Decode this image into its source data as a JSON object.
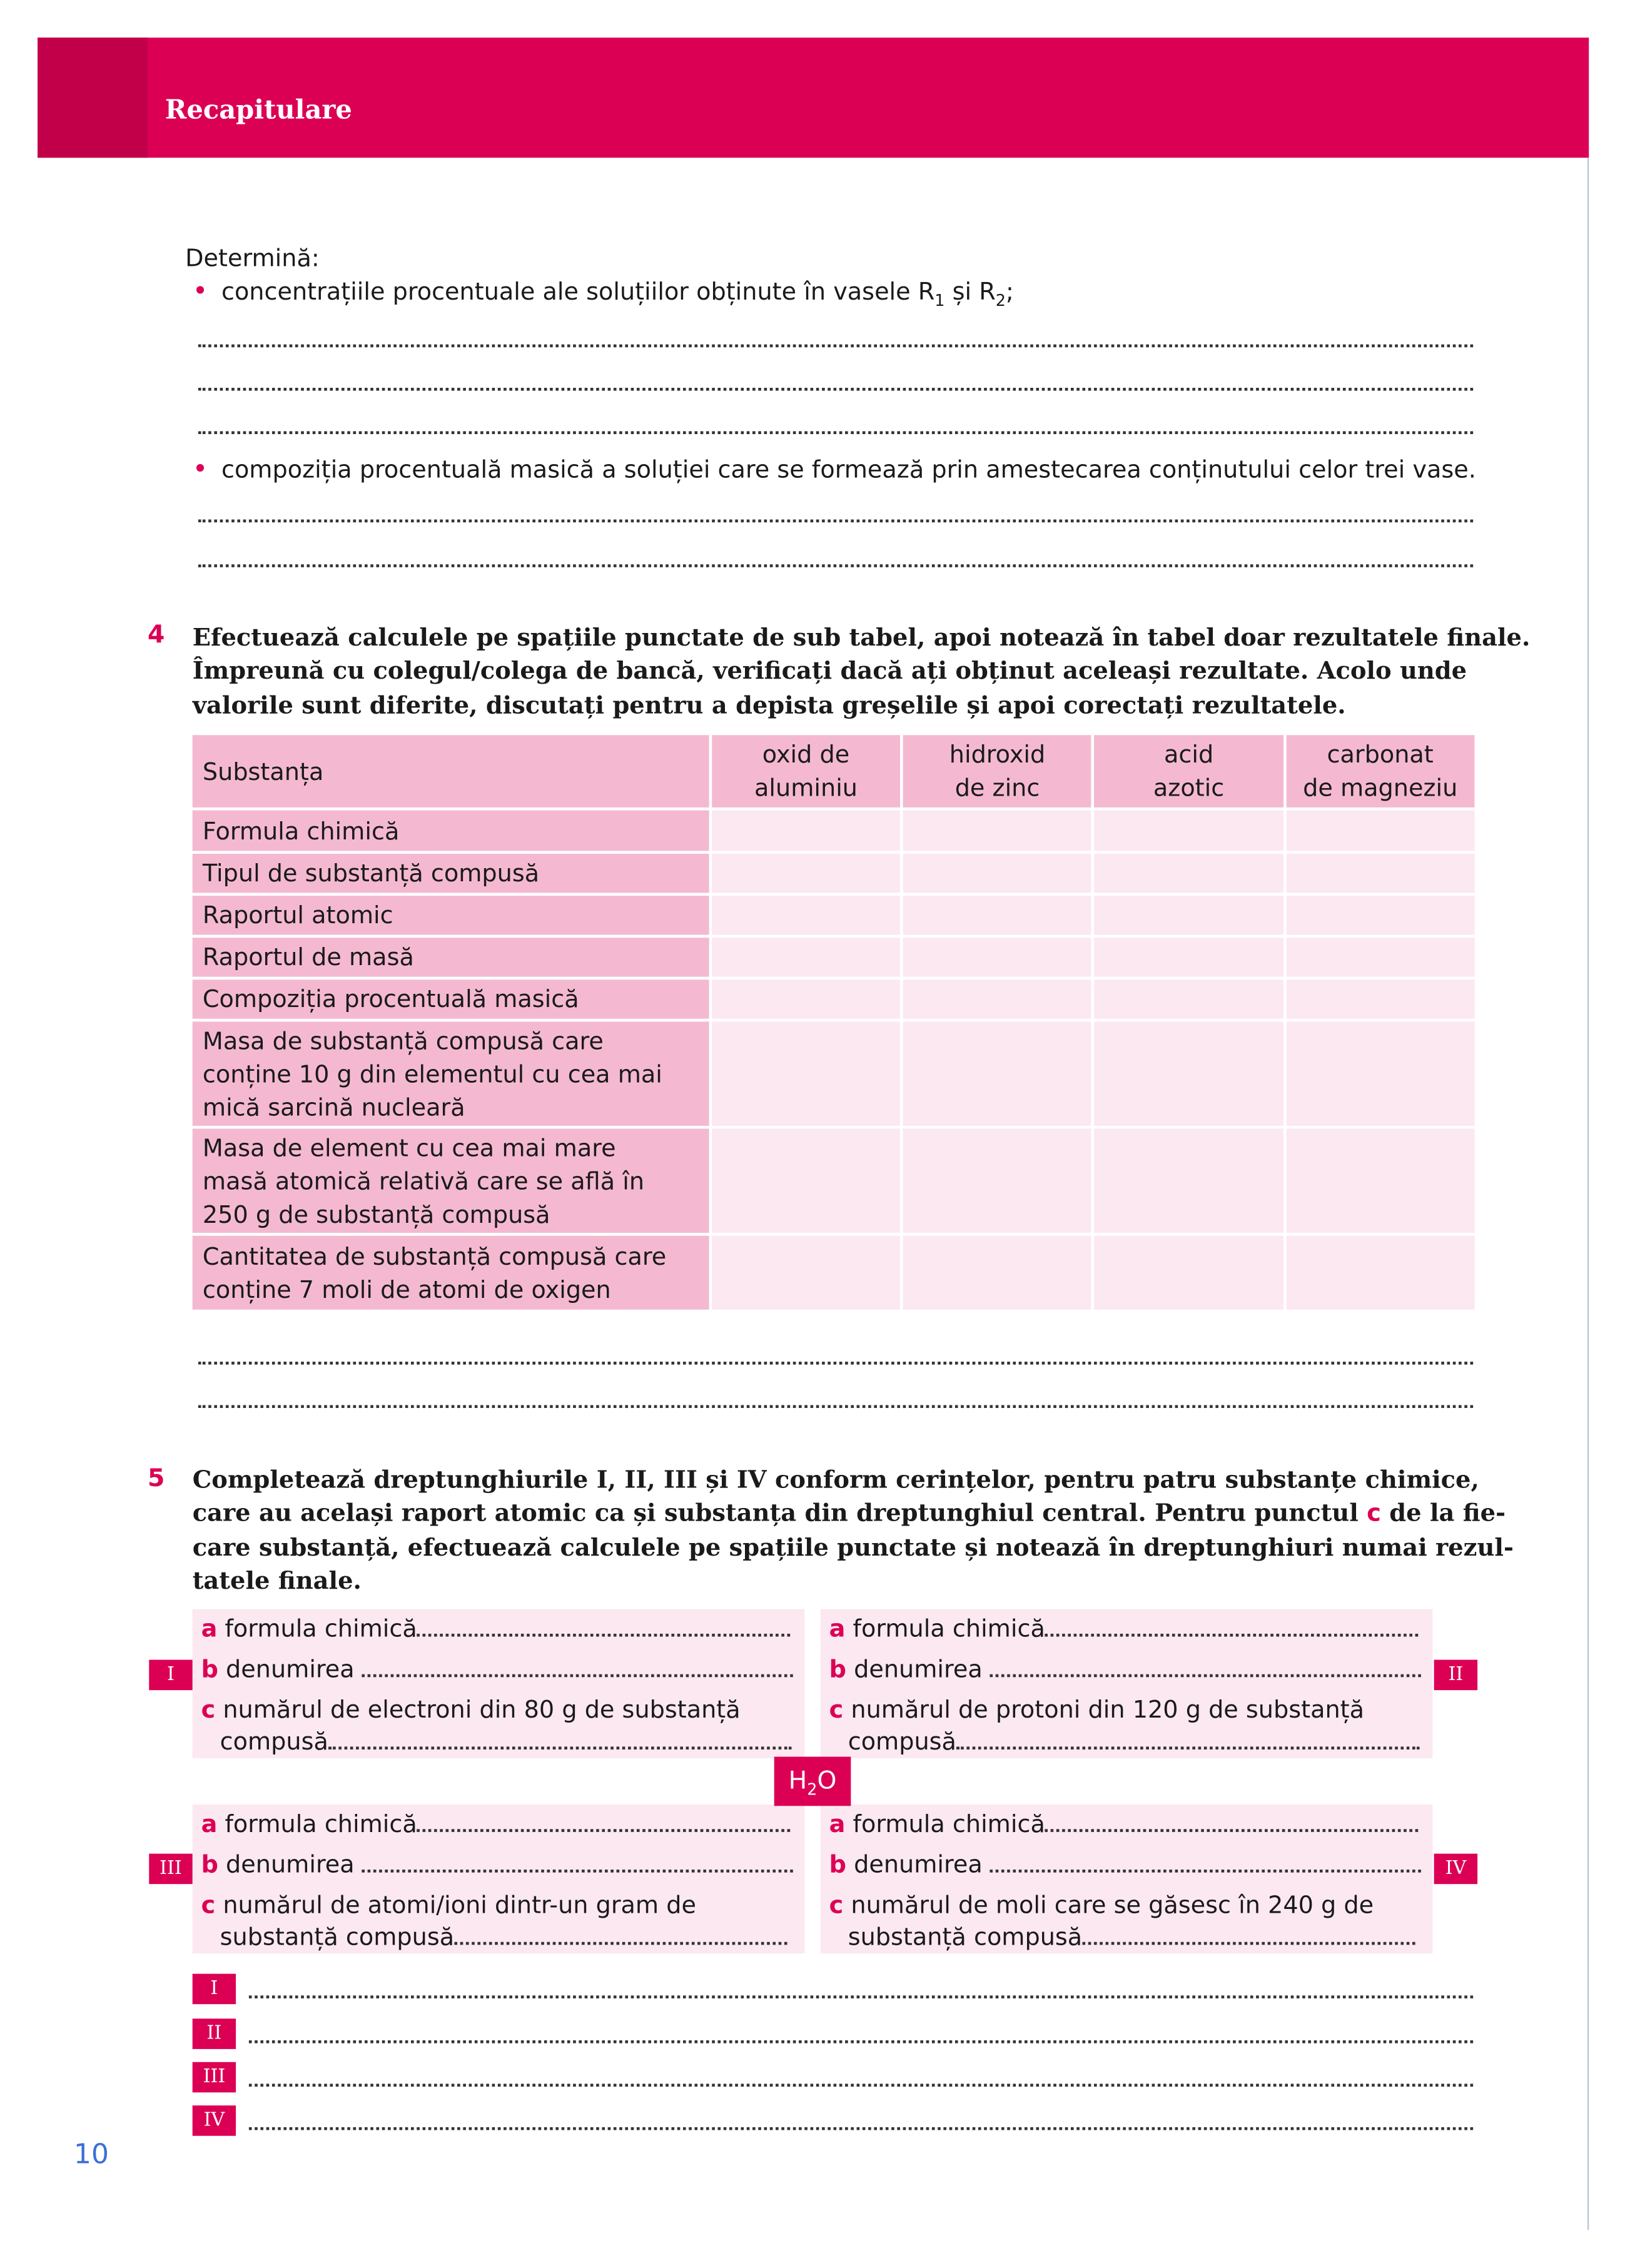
{
  "header": {
    "title": "Recapitulare"
  },
  "section3": {
    "intro": "Determină:",
    "bullet1": "concentrațiile procentuale ale soluțiilor obținute în vasele R",
    "bullet1_sub1": "1",
    "bullet1_mid": " și R",
    "bullet1_sub2": "2",
    "bullet1_end": ";",
    "bullet2": "compoziția procentuală masică a soluției care se formează prin amestecarea conținutului celor trei vase."
  },
  "section4": {
    "number": "4",
    "lines": [
      "Efectuează calculele pe spațiile punctate de sub tabel, apoi notează în tabel doar rezultatele finale.",
      "Împreună cu colegul/colega de bancă, verificați dacă ați obținut aceleași rezultate. Acolo unde",
      "valorile sunt diferite, discutați pentru a depista greșelile și apoi corectați rezultatele."
    ],
    "table": {
      "corner": "Substanța",
      "columns": [
        [
          "oxid de",
          "aluminiu"
        ],
        [
          "hidroxid",
          "de zinc"
        ],
        [
          "acid",
          "azotic"
        ],
        [
          "carbonat",
          "de magneziu"
        ]
      ],
      "rows": [
        [
          "Formula chimică"
        ],
        [
          "Tipul de substanță compusă"
        ],
        [
          "Raportul atomic"
        ],
        [
          "Raportul de masă"
        ],
        [
          "Compoziția procentuală masică"
        ],
        [
          "Masa de substanță compusă care",
          "conține 10 g din elementul cu cea mai",
          "mică sarcină nucleară"
        ],
        [
          "Masa de element cu cea mai mare",
          "masă atomică relativă care se află în",
          "250 g de substanță compusă"
        ],
        [
          "Cantitatea de substanță compusă care",
          "conține 7 moli de atomi de oxigen"
        ]
      ]
    }
  },
  "section5": {
    "number": "5",
    "lines": [
      "Completează dreptunghiurile I, II, III și IV conform cerințelor, pentru patru substanțe chimice,",
      "care au același raport atomic ca și substanța din dreptunghiul central. Pentru punctul ",
      "c",
      " de la fie-",
      "care substanță, efectuează calculele pe spațiile punctate și notează în dreptunghiuri numai rezul-",
      "tatele finale."
    ],
    "center": {
      "main": "H",
      "sub": "2",
      "end": "O"
    },
    "boxes": [
      {
        "tag": "I",
        "a": "formula chimică",
        "b": "denumirea",
        "c1": "numărul de electroni din 80 g de substanță",
        "c2": "compusă"
      },
      {
        "tag": "II",
        "a": "formula chimică",
        "b": "denumirea",
        "c1": "numărul de protoni din 120 g de substanță",
        "c2": "compusă"
      },
      {
        "tag": "III",
        "a": "formula chimică",
        "b": "denumirea",
        "c1": "numărul de atomi/ioni dintr-un gram de",
        "c2": "substanță compusă"
      },
      {
        "tag": "IV",
        "a": "formula chimică",
        "b": "denumirea",
        "c1": "numărul de moli care se găsesc în 240 g de",
        "c2": "substanță compusă"
      }
    ],
    "letters": {
      "a": "a",
      "b": "b",
      "c": "c"
    },
    "answer_tags": [
      "I",
      "II",
      "III",
      "IV"
    ]
  },
  "page_number": "10",
  "colors": {
    "accent": "#DC0055",
    "accent_dark": "#C2004A",
    "table_header": "#F4B9D0",
    "table_cell": "#FCE8F1",
    "page_number": "#3a6fd8"
  }
}
